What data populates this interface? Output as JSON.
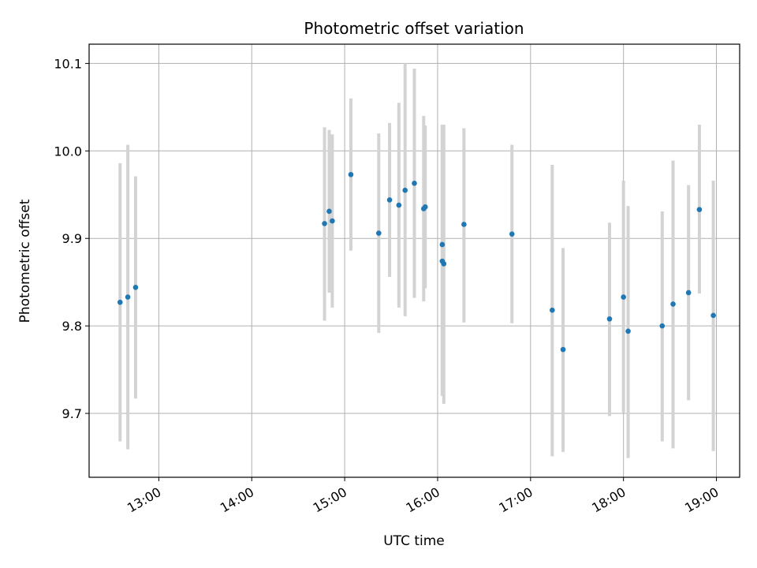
{
  "chart_data": {
    "type": "scatter",
    "title": "Photometric offset variation",
    "xlabel": "UTC time",
    "ylabel": "Photometric offset",
    "x_tick_labels": [
      "13:00",
      "14:00",
      "15:00",
      "16:00",
      "17:00",
      "18:00",
      "19:00"
    ],
    "y_tick_labels": [
      "9.7",
      "9.8",
      "9.9",
      "10.0",
      "10.1"
    ],
    "xlim": [
      "12:15",
      "19:15"
    ],
    "ylim": [
      9.627,
      10.122
    ],
    "grid": true,
    "marker_color": "#1f77b4",
    "errorbar_color": "#d3d3d3",
    "points": [
      {
        "x": "12:35",
        "y": 9.827,
        "ylow": 9.668,
        "yhigh": 9.986
      },
      {
        "x": "12:40",
        "y": 9.833,
        "ylow": 9.659,
        "yhigh": 10.007
      },
      {
        "x": "12:45",
        "y": 9.844,
        "ylow": 9.717,
        "yhigh": 9.971
      },
      {
        "x": "14:47",
        "y": 9.917,
        "ylow": 9.806,
        "yhigh": 10.027
      },
      {
        "x": "14:50",
        "y": 9.931,
        "ylow": 9.838,
        "yhigh": 10.024
      },
      {
        "x": "14:52",
        "y": 9.92,
        "ylow": 9.821,
        "yhigh": 10.019
      },
      {
        "x": "15:04",
        "y": 9.973,
        "ylow": 9.886,
        "yhigh": 10.06
      },
      {
        "x": "15:22",
        "y": 9.906,
        "ylow": 9.792,
        "yhigh": 10.02
      },
      {
        "x": "15:29",
        "y": 9.944,
        "ylow": 9.856,
        "yhigh": 10.032
      },
      {
        "x": "15:35",
        "y": 9.938,
        "ylow": 9.821,
        "yhigh": 10.055
      },
      {
        "x": "15:39",
        "y": 9.955,
        "ylow": 9.811,
        "yhigh": 10.1
      },
      {
        "x": "15:45",
        "y": 9.963,
        "ylow": 9.832,
        "yhigh": 10.094
      },
      {
        "x": "15:51",
        "y": 9.934,
        "ylow": 9.828,
        "yhigh": 10.04
      },
      {
        "x": "15:52",
        "y": 9.936,
        "ylow": 9.843,
        "yhigh": 10.029
      },
      {
        "x": "16:03",
        "y": 9.893,
        "ylow": 9.735,
        "yhigh": 10.03
      },
      {
        "x": "16:03",
        "y": 9.874,
        "ylow": 9.72,
        "yhigh": 10.028
      },
      {
        "x": "16:04",
        "y": 9.871,
        "ylow": 9.711,
        "yhigh": 10.03
      },
      {
        "x": "16:17",
        "y": 9.916,
        "ylow": 9.804,
        "yhigh": 10.026
      },
      {
        "x": "16:48",
        "y": 9.905,
        "ylow": 9.803,
        "yhigh": 10.007
      },
      {
        "x": "17:14",
        "y": 9.818,
        "ylow": 9.651,
        "yhigh": 9.984
      },
      {
        "x": "17:21",
        "y": 9.773,
        "ylow": 9.656,
        "yhigh": 9.889
      },
      {
        "x": "17:51",
        "y": 9.808,
        "ylow": 9.697,
        "yhigh": 9.918
      },
      {
        "x": "18:00",
        "y": 9.833,
        "ylow": 9.701,
        "yhigh": 9.966
      },
      {
        "x": "18:03",
        "y": 9.794,
        "ylow": 9.649,
        "yhigh": 9.937
      },
      {
        "x": "18:25",
        "y": 9.8,
        "ylow": 9.668,
        "yhigh": 9.931
      },
      {
        "x": "18:32",
        "y": 9.825,
        "ylow": 9.66,
        "yhigh": 9.989
      },
      {
        "x": "18:42",
        "y": 9.838,
        "ylow": 9.715,
        "yhigh": 9.961
      },
      {
        "x": "18:49",
        "y": 9.933,
        "ylow": 9.837,
        "yhigh": 10.03
      },
      {
        "x": "18:58",
        "y": 9.812,
        "ylow": 9.657,
        "yhigh": 9.966
      }
    ]
  }
}
